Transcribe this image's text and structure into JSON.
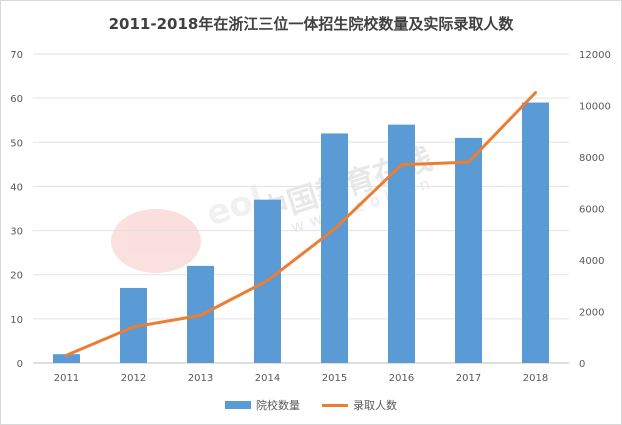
{
  "chart_data": {
    "type": "bar",
    "title": "2011-2018年在浙江三位一体招生院校数量及实际录取人数",
    "categories": [
      "2011",
      "2012",
      "2013",
      "2014",
      "2015",
      "2016",
      "2017",
      "2018"
    ],
    "series": [
      {
        "name": "院校数量",
        "type": "bar",
        "axis": "left",
        "color": "#5b9bd5",
        "values": [
          2,
          17,
          22,
          37,
          52,
          54,
          51,
          59
        ]
      },
      {
        "name": "录取人数",
        "type": "line",
        "axis": "right",
        "color": "#ed7d31",
        "values": [
          300,
          1400,
          1850,
          3200,
          5200,
          7700,
          7800,
          10500
        ]
      }
    ],
    "y_left": {
      "min": 0,
      "max": 70,
      "step": 10,
      "ticks": [
        "0",
        "10",
        "20",
        "30",
        "40",
        "50",
        "60",
        "70"
      ]
    },
    "y_right": {
      "min": 0,
      "max": 12000,
      "step": 2000,
      "ticks": [
        "0",
        "2000",
        "4000",
        "6000",
        "8000",
        "10000",
        "12000"
      ]
    },
    "grid": true,
    "legend_position": "bottom"
  },
  "watermark": {
    "logo_text": "eol",
    "cn_text": "中国教育在线",
    "url_text": "www.eol.cn"
  }
}
